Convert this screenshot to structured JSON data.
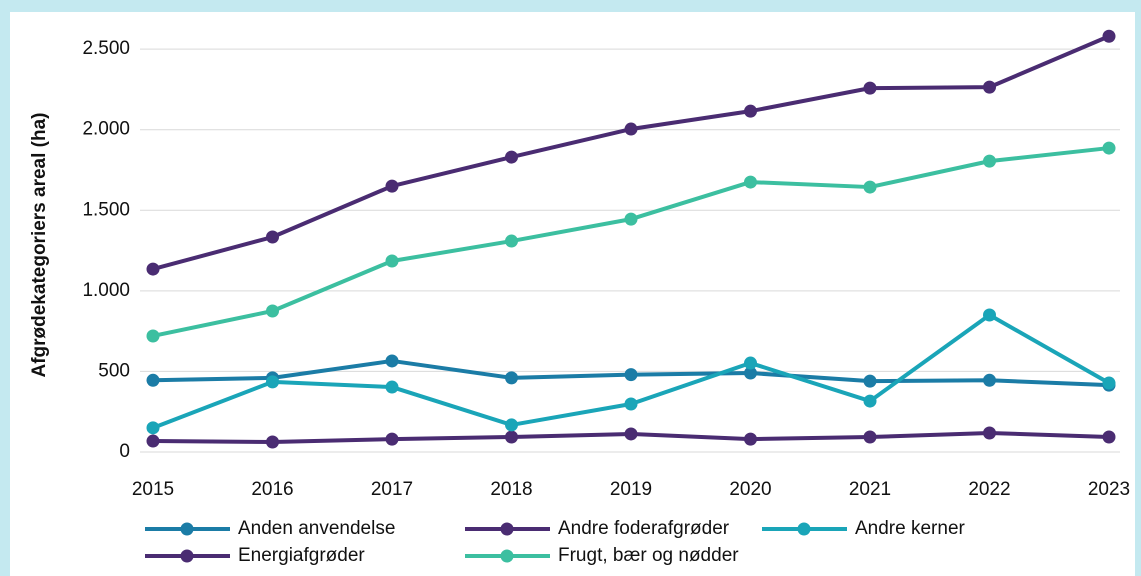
{
  "chart_data": {
    "type": "line",
    "y_label": "Afgrødekategoriers areal (ha)",
    "categories": [
      "2015",
      "2016",
      "2017",
      "2018",
      "2019",
      "2020",
      "2021",
      "2022",
      "2023"
    ],
    "series": [
      {
        "name": "Anden anvendelse",
        "color": "#1b7ca6",
        "values": [
          445,
          460,
          565,
          460,
          480,
          490,
          440,
          445,
          415
        ]
      },
      {
        "name": "Andre foderafgrøder",
        "color": "#4a2c72",
        "values": [
          68,
          62,
          80,
          93,
          112,
          80,
          93,
          118,
          93
        ]
      },
      {
        "name": "Andre kerner",
        "color": "#1aa5b8",
        "values": [
          150,
          435,
          403,
          168,
          298,
          552,
          316,
          850,
          428
        ]
      },
      {
        "name": "Energiafgrøder",
        "color": "#4a2c72",
        "values": [
          1135,
          1334,
          1650,
          1830,
          2004,
          2115,
          2258,
          2264,
          2580
        ]
      },
      {
        "name": "Frugt, bær og nødder",
        "color": "#3cbfa0",
        "values": [
          720,
          875,
          1185,
          1309,
          1445,
          1675,
          1644,
          1805,
          1886
        ]
      }
    ],
    "ylim": [
      0,
      2600
    ],
    "yticks": [
      0,
      500,
      {
        "value": 1000,
        "label": "1.000"
      },
      {
        "value": 1500,
        "label": "1.500"
      },
      {
        "value": 2000,
        "label": "2.000"
      },
      {
        "value": 2500,
        "label": "2.500"
      }
    ],
    "grid": true,
    "legend": "bottom"
  }
}
